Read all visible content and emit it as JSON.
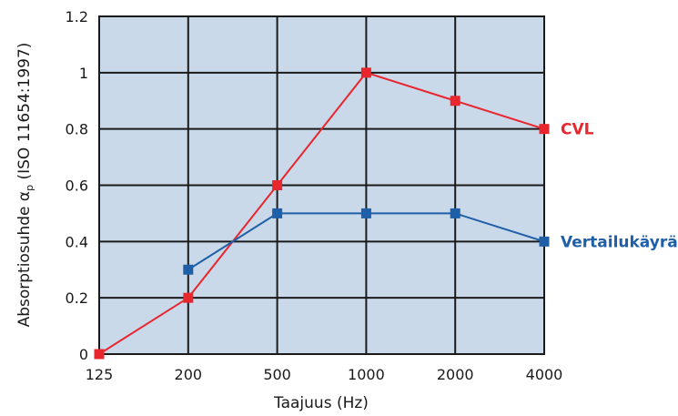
{
  "chart_data": {
    "type": "line",
    "xlabel": "Taajuus (Hz)",
    "ylabel": {
      "text_before": "Absorptiosuhde α",
      "subscript": "p",
      "text_after": " (ISO 11654:1997)"
    },
    "categories": [
      "125",
      "200",
      "500",
      "1000",
      "2000",
      "4000"
    ],
    "ylim": [
      0,
      1.2
    ],
    "yticks": [
      "0",
      "0.2",
      "0.4",
      "0.6",
      "0.8",
      "1",
      "1.2"
    ],
    "grid": true,
    "plot_background": "#c9d9ea",
    "legend_placement": "right, at end of each line",
    "series": [
      {
        "name": "CVL",
        "color": "#e8262e",
        "x": [
          "125",
          "200",
          "500",
          "1000",
          "2000",
          "4000"
        ],
        "values": [
          0,
          0.2,
          0.6,
          1.0,
          0.9,
          0.8
        ]
      },
      {
        "name": "Vertailukäyrä",
        "color": "#1f5fa8",
        "x": [
          "200",
          "500",
          "1000",
          "2000",
          "4000"
        ],
        "values": [
          0.3,
          0.5,
          0.5,
          0.5,
          0.4
        ]
      }
    ]
  }
}
